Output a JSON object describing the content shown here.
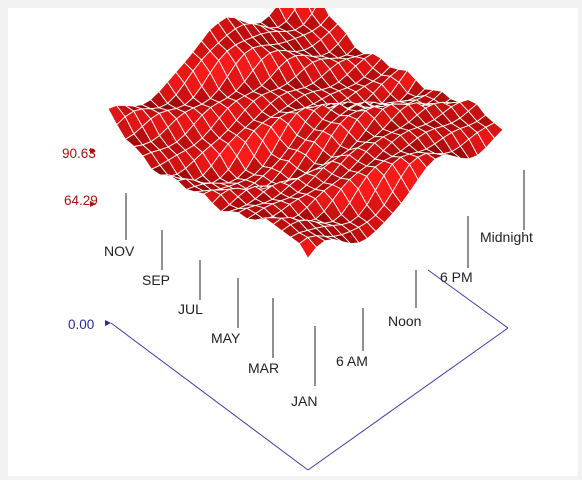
{
  "chart_data": {
    "type": "surface3d",
    "x_axis": {
      "labels": [
        "JAN",
        "MAR",
        "MAY",
        "JUL",
        "SEP",
        "NOV"
      ]
    },
    "y_axis": {
      "labels": [
        "6 AM",
        "Noon",
        "6 PM",
        "Midnight"
      ]
    },
    "z_axis": {
      "ticks": [
        "0.00",
        "64.29",
        "90.63"
      ],
      "markers": {
        "0.00": "#2a2a9a",
        "64.29": "#b01010",
        "90.63": "#b01010"
      }
    },
    "colors": {
      "surface_light": "#ff1a1a",
      "surface_dark": "#7a0000",
      "mesh": "#ffffff",
      "base": "#3b3bb3",
      "label_dark": "#2a2a9a",
      "label_red": "#b01010"
    },
    "rows": 24,
    "cols": 24,
    "z_range": [
      64.29,
      90.63
    ],
    "surface_note_values_hidden": false
  }
}
